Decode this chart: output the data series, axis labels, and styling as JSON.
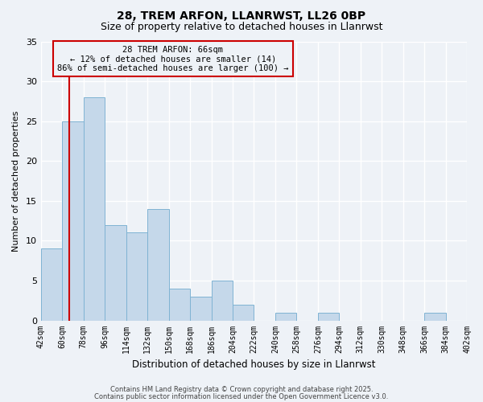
{
  "title": "28, TREM ARFON, LLANRWST, LL26 0BP",
  "subtitle": "Size of property relative to detached houses in Llanrwst",
  "xlabel": "Distribution of detached houses by size in Llanrwst",
  "ylabel": "Number of detached properties",
  "bar_edges": [
    42,
    60,
    78,
    96,
    114,
    132,
    150,
    168,
    186,
    204,
    222,
    240,
    258,
    276,
    294,
    312,
    330,
    348,
    366,
    384,
    402
  ],
  "bar_heights": [
    9,
    25,
    28,
    12,
    11,
    14,
    4,
    3,
    5,
    2,
    0,
    1,
    0,
    1,
    0,
    0,
    0,
    0,
    1,
    0
  ],
  "bar_color": "#c5d8ea",
  "bar_edge_color": "#7fb3d3",
  "vline_x": 66,
  "vline_color": "#cc0000",
  "ylim": [
    0,
    35
  ],
  "yticks": [
    0,
    5,
    10,
    15,
    20,
    25,
    30,
    35
  ],
  "annotation_title": "28 TREM ARFON: 66sqm",
  "annotation_line1": "← 12% of detached houses are smaller (14)",
  "annotation_line2": "86% of semi-detached houses are larger (100) →",
  "footer1": "Contains HM Land Registry data © Crown copyright and database right 2025.",
  "footer2": "Contains public sector information licensed under the Open Government Licence v3.0.",
  "background_color": "#eef2f7",
  "grid_color": "#ffffff",
  "tick_labels": [
    "42sqm",
    "60sqm",
    "78sqm",
    "96sqm",
    "114sqm",
    "132sqm",
    "150sqm",
    "168sqm",
    "186sqm",
    "204sqm",
    "222sqm",
    "240sqm",
    "258sqm",
    "276sqm",
    "294sqm",
    "312sqm",
    "330sqm",
    "348sqm",
    "366sqm",
    "384sqm",
    "402sqm"
  ]
}
